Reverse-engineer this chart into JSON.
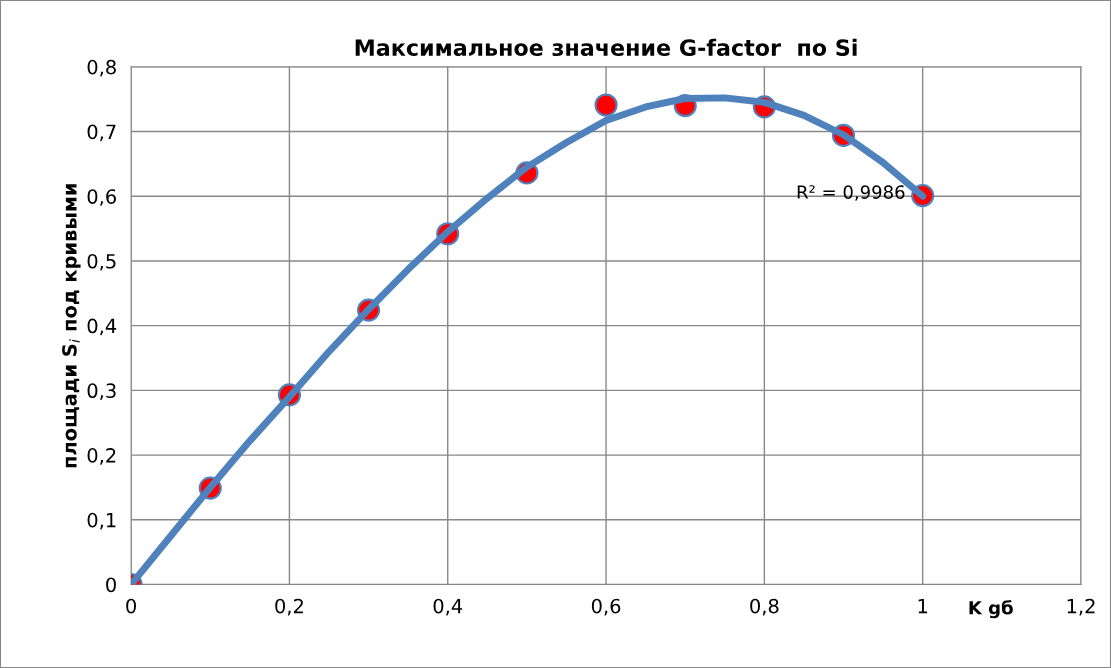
{
  "chart_data": {
    "type": "scatter",
    "title": "Максимальное значение G-factor  по Si",
    "xlabel": "K gб",
    "ylabel": "площади S$_{i}$ под кривыми",
    "x": [
      0,
      0.1,
      0.2,
      0.3,
      0.4,
      0.5,
      0.6,
      0.7,
      0.8,
      0.9,
      1.0
    ],
    "series": [
      {
        "color": "#ff0000",
        "values": [
          0,
          0.149,
          0.293,
          0.424,
          0.542,
          0.636,
          0.741,
          0.74,
          0.738,
          0.694,
          0.601
        ]
      },
      {
        "type": "line",
        "color": "#4f81bd",
        "marker": "none",
        "x": [
          0,
          0.05,
          0.1,
          0.15,
          0.2,
          0.25,
          0.3,
          0.35,
          0.4,
          0.45,
          0.5,
          0.55,
          0.6,
          0.65,
          0.7,
          0.75,
          0.8,
          0.85,
          0.9,
          0.95,
          1.0
        ],
        "values": [
          0,
          0.075,
          0.15,
          0.222,
          0.29,
          0.36,
          0.425,
          0.487,
          0.545,
          0.597,
          0.645,
          0.683,
          0.717,
          0.738,
          0.751,
          0.752,
          0.745,
          0.725,
          0.695,
          0.652,
          0.6
        ]
      }
    ],
    "marker": "circle",
    "annotations": [
      "R² = 0,9986"
    ],
    "xlim": [
      0,
      1.2
    ],
    "ylim": [
      0,
      0.8
    ],
    "xticks": [
      0,
      {
        "value": 0.2,
        "label": "0,2"
      },
      {
        "value": 0.4,
        "label": "0,4"
      },
      {
        "value": 0.6,
        "label": "0,6"
      },
      {
        "value": 0.8,
        "label": "0,8"
      },
      1,
      {
        "value": 1.2,
        "label": "1,2"
      }
    ],
    "yticks": [
      0,
      {
        "value": 0.1,
        "label": "0,1"
      },
      {
        "value": 0.2,
        "label": "0,2"
      },
      {
        "value": 0.3,
        "label": "0,3"
      },
      {
        "value": 0.4,
        "label": "0,4"
      },
      {
        "value": 0.5,
        "label": "0,5"
      },
      {
        "value": 0.6,
        "label": "0,6"
      },
      {
        "value": 0.7,
        "label": "0,7"
      },
      {
        "value": 0.8,
        "label": "0,8"
      }
    ],
    "grid": true,
    "legend": false
  }
}
